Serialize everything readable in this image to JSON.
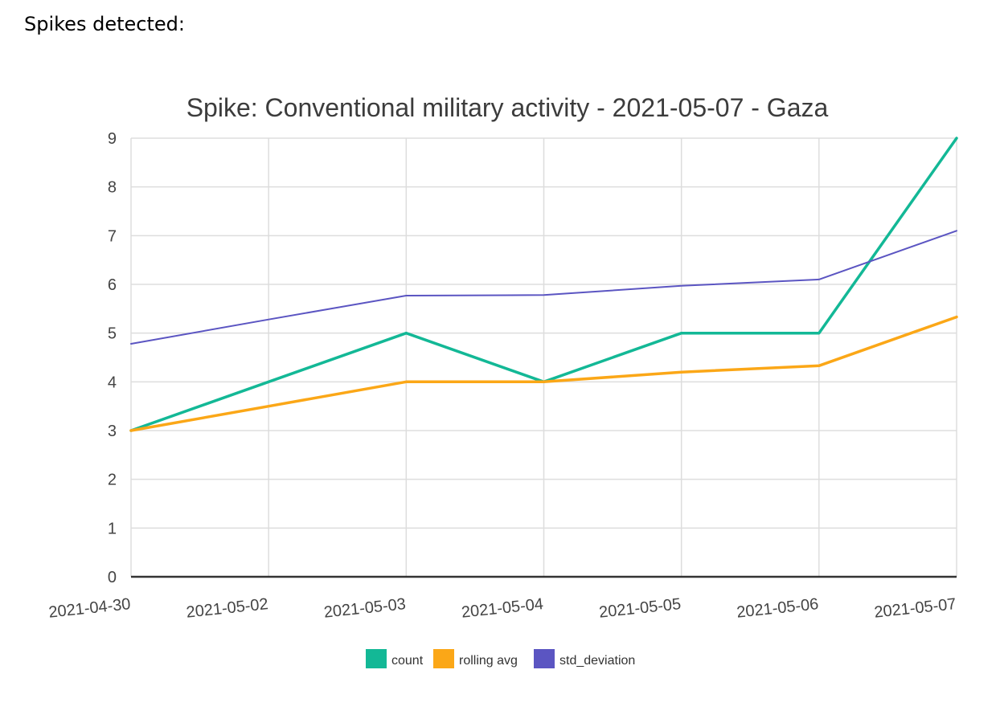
{
  "page": {
    "heading": "Spikes detected:"
  },
  "chart_data": {
    "type": "line",
    "title": "Spike: Conventional military activity - 2021-05-07 - Gaza",
    "xlabel": "",
    "ylabel": "",
    "categories": [
      "2021-04-30",
      "2021-05-02",
      "2021-05-03",
      "2021-05-04",
      "2021-05-05",
      "2021-05-06",
      "2021-05-07"
    ],
    "ylim": [
      0,
      9
    ],
    "yticks": [
      0,
      1,
      2,
      3,
      4,
      5,
      6,
      7,
      8,
      9
    ],
    "grid": true,
    "legend": "bottom",
    "series": [
      {
        "name": "count",
        "color": "#13b896",
        "values": [
          3,
          4,
          5,
          4,
          5,
          5,
          9
        ]
      },
      {
        "name": "rolling avg",
        "color": "#fba717",
        "values": [
          3,
          3.5,
          4,
          4,
          4.2,
          4.33,
          5.33
        ]
      },
      {
        "name": "std_deviation",
        "color": "#5b55c2",
        "values": [
          4.78,
          5.28,
          5.77,
          5.78,
          5.97,
          6.1,
          7.1
        ]
      }
    ]
  }
}
